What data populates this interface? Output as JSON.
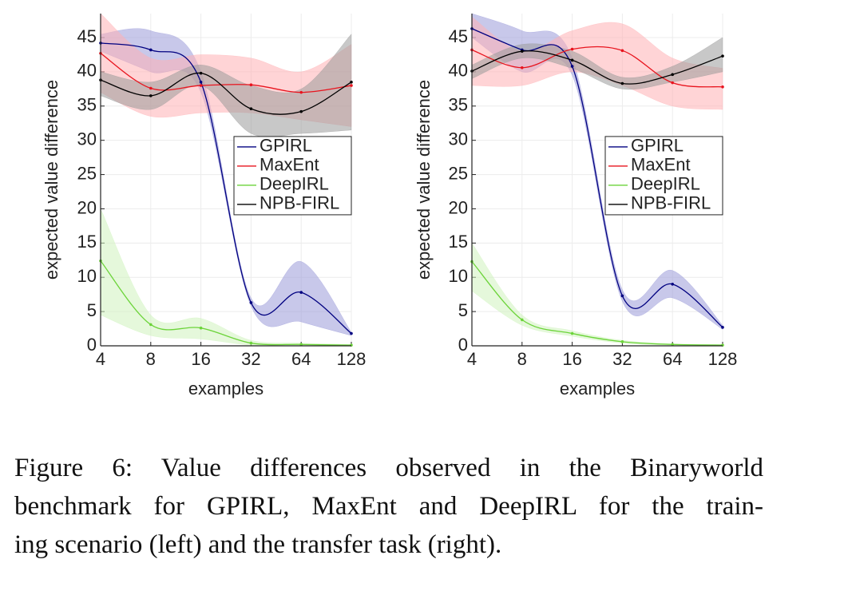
{
  "chart_data": [
    {
      "type": "line",
      "xlabel": "examples",
      "ylabel": "expected value difference",
      "x": [
        4,
        8,
        16,
        32,
        64,
        128
      ],
      "xscale": "log",
      "xlim": [
        4,
        128
      ],
      "xticks": [
        4,
        8,
        16,
        32,
        64,
        128
      ],
      "ylim": [
        0,
        48.5
      ],
      "yticks": [
        0,
        5,
        10,
        15,
        20,
        25,
        30,
        35,
        40,
        45
      ],
      "grid": true,
      "legend": "east",
      "series": [
        {
          "name": "GPIRL",
          "color": "#000080",
          "band_color": "#9a9ad8",
          "values": [
            44.2,
            43.2,
            38.5,
            6.3,
            7.8,
            1.8
          ],
          "band_lower": [
            43,
            40,
            37,
            5.8,
            3.5,
            1.5
          ],
          "band_upper": [
            45.5,
            46,
            40,
            7,
            12.3,
            2
          ]
        },
        {
          "name": "MaxEnt",
          "color": "#e8141e",
          "band_color": "#ffb0b4",
          "values": [
            42.7,
            37.6,
            38,
            38.1,
            37,
            38
          ],
          "band_lower": [
            37,
            33.5,
            34,
            34,
            33,
            32
          ],
          "band_upper": [
            48.5,
            42,
            42.5,
            42,
            40,
            44
          ]
        },
        {
          "name": "DeepIRL",
          "color": "#6cd43a",
          "band_color": "#cff3bd",
          "values": [
            12.4,
            3.1,
            2.6,
            0.4,
            0.2,
            0.1
          ],
          "band_lower": [
            4.5,
            1.5,
            1,
            0.1,
            0,
            0
          ],
          "band_upper": [
            20,
            4.5,
            4,
            0.8,
            0.4,
            0.2
          ]
        },
        {
          "name": "NPB-FIRL",
          "color": "#000000",
          "band_color": "#9a9a9a",
          "values": [
            38.8,
            36.5,
            39.8,
            34.6,
            34.2,
            38.5
          ],
          "band_lower": [
            36.5,
            34.5,
            38,
            31,
            31,
            31.5
          ],
          "band_upper": [
            40,
            38.5,
            41,
            38,
            37.5,
            45.5
          ]
        }
      ]
    },
    {
      "type": "line",
      "xlabel": "examples",
      "ylabel": "expected value difference",
      "x": [
        4,
        8,
        16,
        32,
        64,
        128
      ],
      "xscale": "log",
      "xlim": [
        4,
        128
      ],
      "xticks": [
        4,
        8,
        16,
        32,
        64,
        128
      ],
      "ylim": [
        0,
        48.5
      ],
      "yticks": [
        0,
        5,
        10,
        15,
        20,
        25,
        30,
        35,
        40,
        45
      ],
      "grid": true,
      "legend": "east",
      "series": [
        {
          "name": "GPIRL",
          "color": "#000080",
          "band_color": "#9a9ad8",
          "values": [
            46.3,
            43.2,
            40.8,
            7.3,
            9,
            2.7
          ],
          "band_lower": [
            45,
            40,
            39.5,
            6.5,
            7,
            2.4
          ],
          "band_upper": [
            48.5,
            46,
            42,
            8.2,
            11,
            3
          ]
        },
        {
          "name": "MaxEnt",
          "color": "#e8141e",
          "band_color": "#ffb0b4",
          "values": [
            43.2,
            40.6,
            43.3,
            43.1,
            38.4,
            37.8
          ],
          "band_lower": [
            38,
            38,
            40,
            38,
            35,
            34.5
          ],
          "band_upper": [
            48,
            43,
            46,
            47,
            42,
            40.5
          ]
        },
        {
          "name": "DeepIRL",
          "color": "#6cd43a",
          "band_color": "#cff3bd",
          "values": [
            12.3,
            3.8,
            1.8,
            0.6,
            0.2,
            0.1
          ],
          "band_lower": [
            8,
            3,
            1.4,
            0.4,
            0.1,
            0
          ],
          "band_upper": [
            15,
            4.5,
            2.2,
            0.8,
            0.3,
            0.2
          ]
        },
        {
          "name": "NPB-FIRL",
          "color": "#000000",
          "band_color": "#9a9a9a",
          "values": [
            40.1,
            43,
            41.7,
            38.3,
            39.6,
            42.3
          ],
          "band_lower": [
            39,
            42,
            40.5,
            37.5,
            38.5,
            40
          ],
          "band_upper": [
            41,
            44,
            43,
            39.2,
            40.8,
            45
          ]
        }
      ]
    }
  ],
  "caption": {
    "lines": [
      "Figure 6:  Value differences observed in the Binaryworld",
      "benchmark for GPIRL, MaxEnt and DeepIRL for the train-",
      "ing scenario (left) and the transfer task (right)."
    ]
  }
}
